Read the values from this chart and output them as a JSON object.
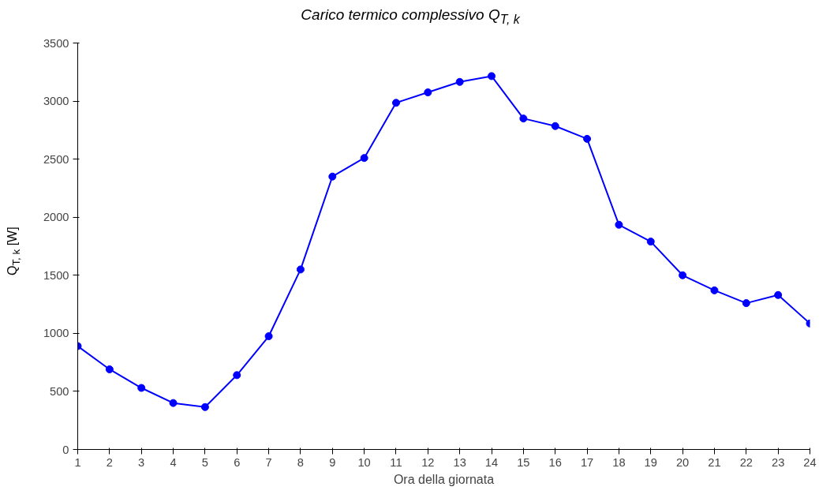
{
  "chart_data": {
    "type": "line",
    "title": "Carico termico complessivo Q$_{T, k}$",
    "xlabel": "Ora della giornata",
    "ylabel": "Q$_{T, k}$ [W]",
    "x": [
      1,
      2,
      3,
      4,
      5,
      6,
      7,
      8,
      9,
      10,
      11,
      12,
      13,
      14,
      15,
      16,
      17,
      18,
      19,
      20,
      21,
      22,
      23,
      24
    ],
    "series": [
      {
        "color": "#0000ff",
        "values": [
          890,
          690,
          530,
          400,
          365,
          640,
          975,
          1550,
          2350,
          2510,
          2985,
          3075,
          3165,
          3215,
          2850,
          2785,
          2675,
          1935,
          1790,
          1500,
          1370,
          1260,
          1330,
          1085
        ]
      }
    ],
    "xlim": [
      1,
      24
    ],
    "xticks": [
      1,
      2,
      3,
      4,
      5,
      6,
      7,
      8,
      9,
      10,
      11,
      12,
      13,
      14,
      15,
      16,
      17,
      18,
      19,
      20,
      21,
      22,
      23,
      24
    ],
    "ylim": [
      0,
      3500
    ],
    "yticks": [
      0,
      500,
      1000,
      1500,
      2000,
      2500,
      3000,
      3500
    ],
    "grid": false,
    "marker": "circle",
    "line_style": "solid"
  }
}
